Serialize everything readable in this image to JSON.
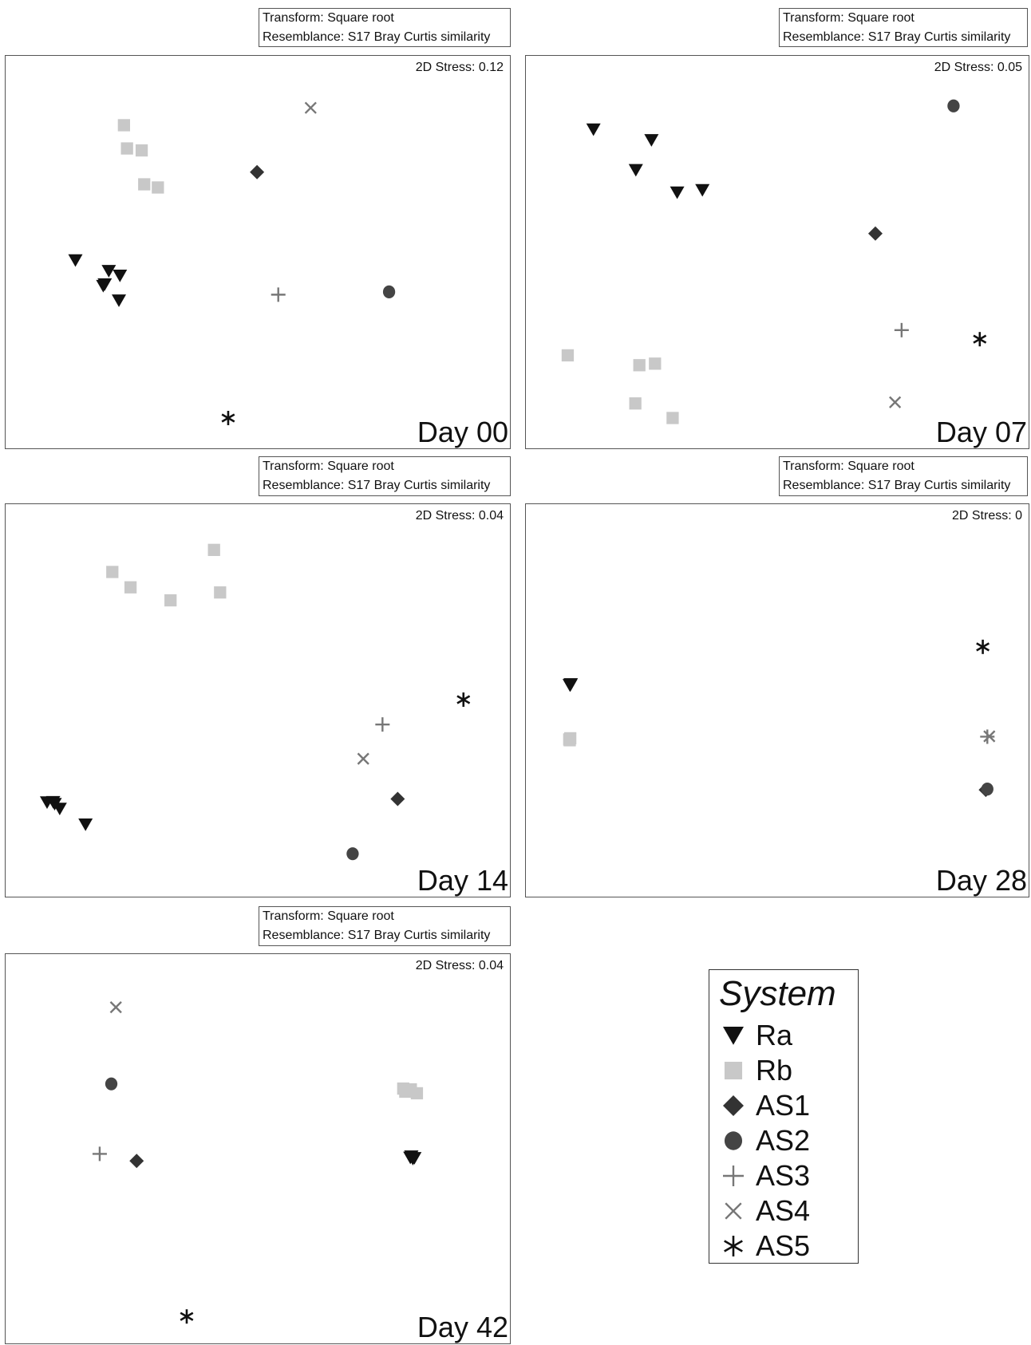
{
  "legend": {
    "title": "System",
    "items": [
      {
        "label": "Ra",
        "marker": "triangle-down",
        "color": "#111111"
      },
      {
        "label": "Rb",
        "marker": "square",
        "color": "#c8c8c8"
      },
      {
        "label": "AS1",
        "marker": "diamond",
        "color": "#333333"
      },
      {
        "label": "AS2",
        "marker": "circle",
        "color": "#444444"
      },
      {
        "label": "AS3",
        "marker": "plus",
        "color": "#777777"
      },
      {
        "label": "AS4",
        "marker": "x",
        "color": "#777777"
      },
      {
        "label": "AS5",
        "marker": "asterisk",
        "color": "#111111"
      }
    ]
  },
  "chart_data": [
    {
      "type": "scatter",
      "panel_label": "Day 00",
      "transform": "Transform: Square root",
      "resemblance": "Resemblance: S17 Bray Curtis similarity",
      "stress": "2D Stress: 0.12",
      "series": [
        {
          "name": "Ra",
          "points": [
            [
              22.4,
              37.9
            ],
            [
              22.6,
              44.2
            ],
            [
              20.4,
              45.4
            ],
            [
              19.3,
              41.6
            ],
            [
              13.8,
              48.1
            ],
            [
              19.6,
              42.0
            ]
          ]
        },
        {
          "name": "Rb",
          "points": [
            [
              23.4,
              82.4
            ],
            [
              24.0,
              76.5
            ],
            [
              26.9,
              76.0
            ],
            [
              27.4,
              67.4
            ],
            [
              30.1,
              66.6
            ]
          ]
        },
        {
          "name": "AS1",
          "points": [
            [
              49.7,
              70.5
            ]
          ]
        },
        {
          "name": "AS2",
          "points": [
            [
              75.8,
              40.1
            ]
          ]
        },
        {
          "name": "AS3",
          "points": [
            [
              53.9,
              39.4
            ]
          ]
        },
        {
          "name": "AS4",
          "points": [
            [
              60.3,
              86.8
            ]
          ]
        },
        {
          "name": "AS5",
          "points": [
            [
              44.0,
              8.1
            ]
          ]
        }
      ]
    },
    {
      "type": "scatter",
      "panel_label": "Day 07",
      "transform": "Transform: Square root",
      "resemblance": "Resemblance: S17 Bray Curtis similarity",
      "stress": "2D Stress: 0.05",
      "series": [
        {
          "name": "Ra",
          "points": [
            [
              13.4,
              81.3
            ],
            [
              24.9,
              78.6
            ],
            [
              21.8,
              71.0
            ],
            [
              30.0,
              65.3
            ],
            [
              35.0,
              65.9
            ]
          ]
        },
        {
          "name": "Rb",
          "points": [
            [
              8.3,
              24.0
            ],
            [
              22.5,
              21.5
            ],
            [
              25.6,
              21.9
            ],
            [
              21.7,
              11.8
            ],
            [
              29.1,
              8.1
            ]
          ]
        },
        {
          "name": "AS1",
          "points": [
            [
              69.3,
              54.9
            ]
          ]
        },
        {
          "name": "AS2",
          "points": [
            [
              84.8,
              87.3
            ]
          ]
        },
        {
          "name": "AS3",
          "points": [
            [
              74.5,
              30.4
            ]
          ]
        },
        {
          "name": "AS4",
          "points": [
            [
              73.2,
              12.1
            ]
          ]
        },
        {
          "name": "AS5",
          "points": [
            [
              90.0,
              28.1
            ]
          ]
        }
      ]
    },
    {
      "type": "scatter",
      "panel_label": "Day 14",
      "transform": "Transform: Square root",
      "resemblance": "Resemblance: S17 Bray Curtis similarity",
      "stress": "2D Stress: 0.04",
      "series": [
        {
          "name": "Ra",
          "points": [
            [
              8.2,
              24.3
            ],
            [
              9.4,
              24.4
            ],
            [
              9.7,
              23.9
            ],
            [
              10.7,
              22.7
            ],
            [
              15.8,
              18.7
            ]
          ]
        },
        {
          "name": "Rb",
          "points": [
            [
              21.1,
              82.8
            ],
            [
              41.2,
              88.4
            ],
            [
              24.7,
              78.9
            ],
            [
              32.6,
              75.6
            ],
            [
              42.4,
              77.6
            ]
          ]
        },
        {
          "name": "AS1",
          "points": [
            [
              77.5,
              25.2
            ]
          ]
        },
        {
          "name": "AS2",
          "points": [
            [
              68.6,
              11.3
            ]
          ]
        },
        {
          "name": "AS3",
          "points": [
            [
              74.5,
              44.1
            ]
          ]
        },
        {
          "name": "AS4",
          "points": [
            [
              70.7,
              35.4
            ]
          ]
        },
        {
          "name": "AS5",
          "points": [
            [
              90.5,
              50.4
            ]
          ]
        }
      ]
    },
    {
      "type": "scatter",
      "panel_label": "Day 28",
      "transform": "Transform: Square root",
      "resemblance": "Resemblance: S17 Bray Curtis similarity",
      "stress": "2D Stress: 0",
      "series": [
        {
          "name": "Ra",
          "points": [
            [
              8.7,
              54.1
            ],
            [
              8.9,
              54.3
            ],
            [
              8.8,
              54.0
            ]
          ]
        },
        {
          "name": "Rb",
          "points": [
            [
              8.6,
              40.3
            ],
            [
              8.8,
              40.6
            ],
            [
              8.7,
              40.1
            ]
          ]
        },
        {
          "name": "AS1",
          "points": [
            [
              91.2,
              27.5
            ]
          ]
        },
        {
          "name": "AS2",
          "points": [
            [
              91.5,
              27.7
            ]
          ]
        },
        {
          "name": "AS3",
          "points": [
            [
              91.5,
              41.0
            ]
          ]
        },
        {
          "name": "AS4",
          "points": [
            [
              91.9,
              41.1
            ]
          ]
        },
        {
          "name": "AS5",
          "points": [
            [
              90.6,
              63.8
            ]
          ]
        }
      ]
    },
    {
      "type": "scatter",
      "panel_label": "Day 42",
      "transform": "Transform: Square root",
      "resemblance": "Resemblance: S17 Bray Curtis similarity",
      "stress": "2D Stress: 0.04",
      "series": [
        {
          "name": "Ra",
          "points": [
            [
              80.0,
              47.9
            ],
            [
              80.5,
              47.6
            ],
            [
              80.2,
              48.2
            ],
            [
              80.8,
              47.8
            ]
          ]
        },
        {
          "name": "Rb",
          "points": [
            [
              78.6,
              65.6
            ],
            [
              80.1,
              65.4
            ],
            [
              81.3,
              64.4
            ],
            [
              79.0,
              64.8
            ]
          ]
        },
        {
          "name": "AS1",
          "points": [
            [
              25.9,
              47.1
            ]
          ]
        },
        {
          "name": "AS2",
          "points": [
            [
              20.9,
              66.8
            ]
          ]
        },
        {
          "name": "AS3",
          "points": [
            [
              18.6,
              48.9
            ]
          ]
        },
        {
          "name": "AS4",
          "points": [
            [
              21.8,
              86.4
            ]
          ]
        },
        {
          "name": "AS5",
          "points": [
            [
              35.8,
              7.3
            ]
          ]
        }
      ]
    }
  ]
}
